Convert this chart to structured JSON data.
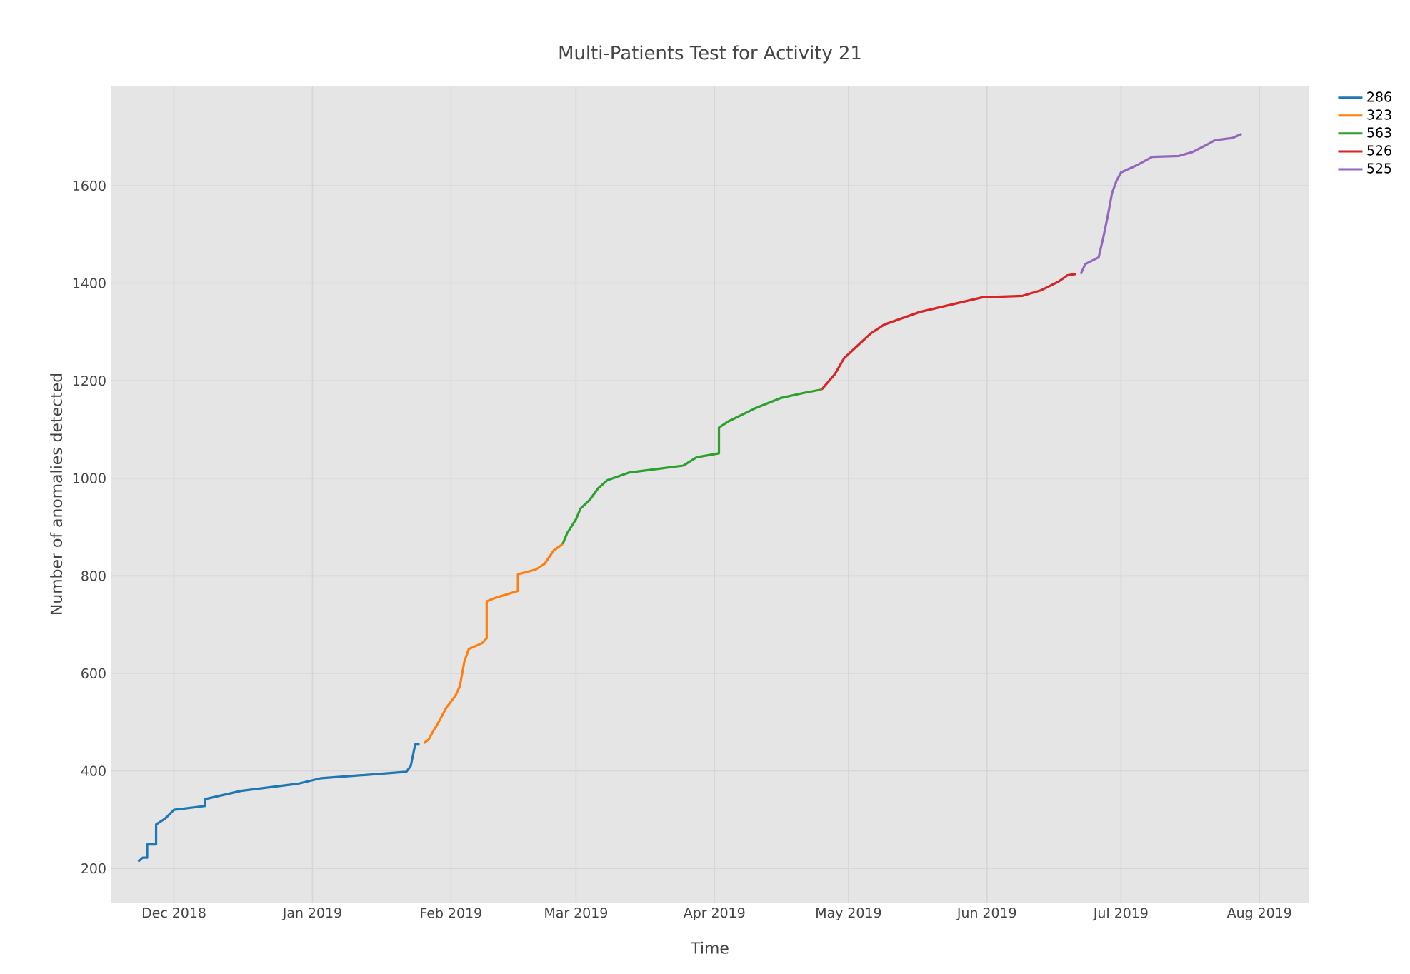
{
  "chart_data": {
    "type": "line",
    "title": "Multi-Patients Test for Activity 21",
    "xlabel": "Time",
    "ylabel": "Number of anomalies detected",
    "xlim": [
      "2018-11-17",
      "2019-08-12"
    ],
    "xticks": [
      {
        "value": "2018-12-01",
        "label": "Dec 2018"
      },
      {
        "value": "2019-01-01",
        "label": "Jan 2019"
      },
      {
        "value": "2019-02-01",
        "label": "Feb 2019"
      },
      {
        "value": "2019-03-01",
        "label": "Mar 2019"
      },
      {
        "value": "2019-04-01",
        "label": "Apr 2019"
      },
      {
        "value": "2019-05-01",
        "label": "May 2019"
      },
      {
        "value": "2019-06-01",
        "label": "Jun 2019"
      },
      {
        "value": "2019-07-01",
        "label": "Jul 2019"
      },
      {
        "value": "2019-08-01",
        "label": "Aug 2019"
      }
    ],
    "ylim": [
      130,
      1805
    ],
    "yticks": [
      200,
      400,
      600,
      800,
      1000,
      1200,
      1400,
      1600
    ],
    "grid": true,
    "legend": "top right",
    "series": [
      {
        "name": "286",
        "color": "#1f77b4",
        "x": [
          "2018-11-23",
          "2018-11-24",
          "2018-11-25",
          "2018-11-25",
          "2018-11-27",
          "2018-11-27",
          "2018-11-29",
          "2018-12-01",
          "2018-12-08",
          "2018-12-08",
          "2018-12-16",
          "2018-12-29",
          "2019-01-03",
          "2019-01-12",
          "2019-01-22",
          "2019-01-23",
          "2019-01-24",
          "2019-01-25"
        ],
        "values": [
          214,
          222,
          222,
          249,
          249,
          290,
          302,
          320,
          328,
          342,
          359,
          374,
          385,
          391,
          398,
          410,
          454,
          454
        ]
      },
      {
        "name": "323",
        "color": "#ff7f0e",
        "x": [
          "2019-01-26",
          "2019-01-27",
          "2019-01-28",
          "2019-01-29",
          "2019-01-31",
          "2019-02-02",
          "2019-02-03",
          "2019-02-04",
          "2019-02-05",
          "2019-02-08",
          "2019-02-09",
          "2019-02-09",
          "2019-02-11",
          "2019-02-16",
          "2019-02-16",
          "2019-02-20",
          "2019-02-22",
          "2019-02-24",
          "2019-02-26"
        ],
        "values": [
          457,
          464,
          481,
          496,
          530,
          554,
          574,
          624,
          650,
          662,
          672,
          748,
          755,
          769,
          803,
          813,
          825,
          852,
          865
        ]
      },
      {
        "name": "563",
        "color": "#2ca02c",
        "x": [
          "2019-02-26",
          "2019-02-27",
          "2019-03-01",
          "2019-03-02",
          "2019-03-04",
          "2019-03-06",
          "2019-03-08",
          "2019-03-13",
          "2019-03-19",
          "2019-03-25",
          "2019-03-28",
          "2019-04-02",
          "2019-04-02",
          "2019-04-04",
          "2019-04-10",
          "2019-04-16",
          "2019-04-21",
          "2019-04-25"
        ],
        "values": [
          865,
          887,
          916,
          938,
          955,
          980,
          996,
          1012,
          1019,
          1026,
          1043,
          1051,
          1104,
          1116,
          1143,
          1165,
          1175,
          1182
        ]
      },
      {
        "name": "526",
        "color": "#d62728",
        "x": [
          "2019-04-25",
          "2019-04-28",
          "2019-04-30",
          "2019-05-04",
          "2019-05-06",
          "2019-05-09",
          "2019-05-17",
          "2019-05-24",
          "2019-05-31",
          "2019-06-09",
          "2019-06-13",
          "2019-06-17",
          "2019-06-19",
          "2019-06-21"
        ],
        "values": [
          1182,
          1214,
          1246,
          1280,
          1297,
          1315,
          1341,
          1356,
          1371,
          1374,
          1385,
          1403,
          1416,
          1419
        ]
      },
      {
        "name": "525",
        "color": "#9467bd",
        "x": [
          "2019-06-22",
          "2019-06-23",
          "2019-06-26",
          "2019-06-27",
          "2019-06-28",
          "2019-06-29",
          "2019-06-30",
          "2019-07-01",
          "2019-07-05",
          "2019-07-08",
          "2019-07-14",
          "2019-07-17",
          "2019-07-20",
          "2019-07-22",
          "2019-07-26",
          "2019-07-28"
        ],
        "values": [
          1419,
          1439,
          1453,
          1492,
          1536,
          1585,
          1610,
          1627,
          1644,
          1659,
          1661,
          1669,
          1683,
          1693,
          1698,
          1706
        ]
      }
    ]
  }
}
